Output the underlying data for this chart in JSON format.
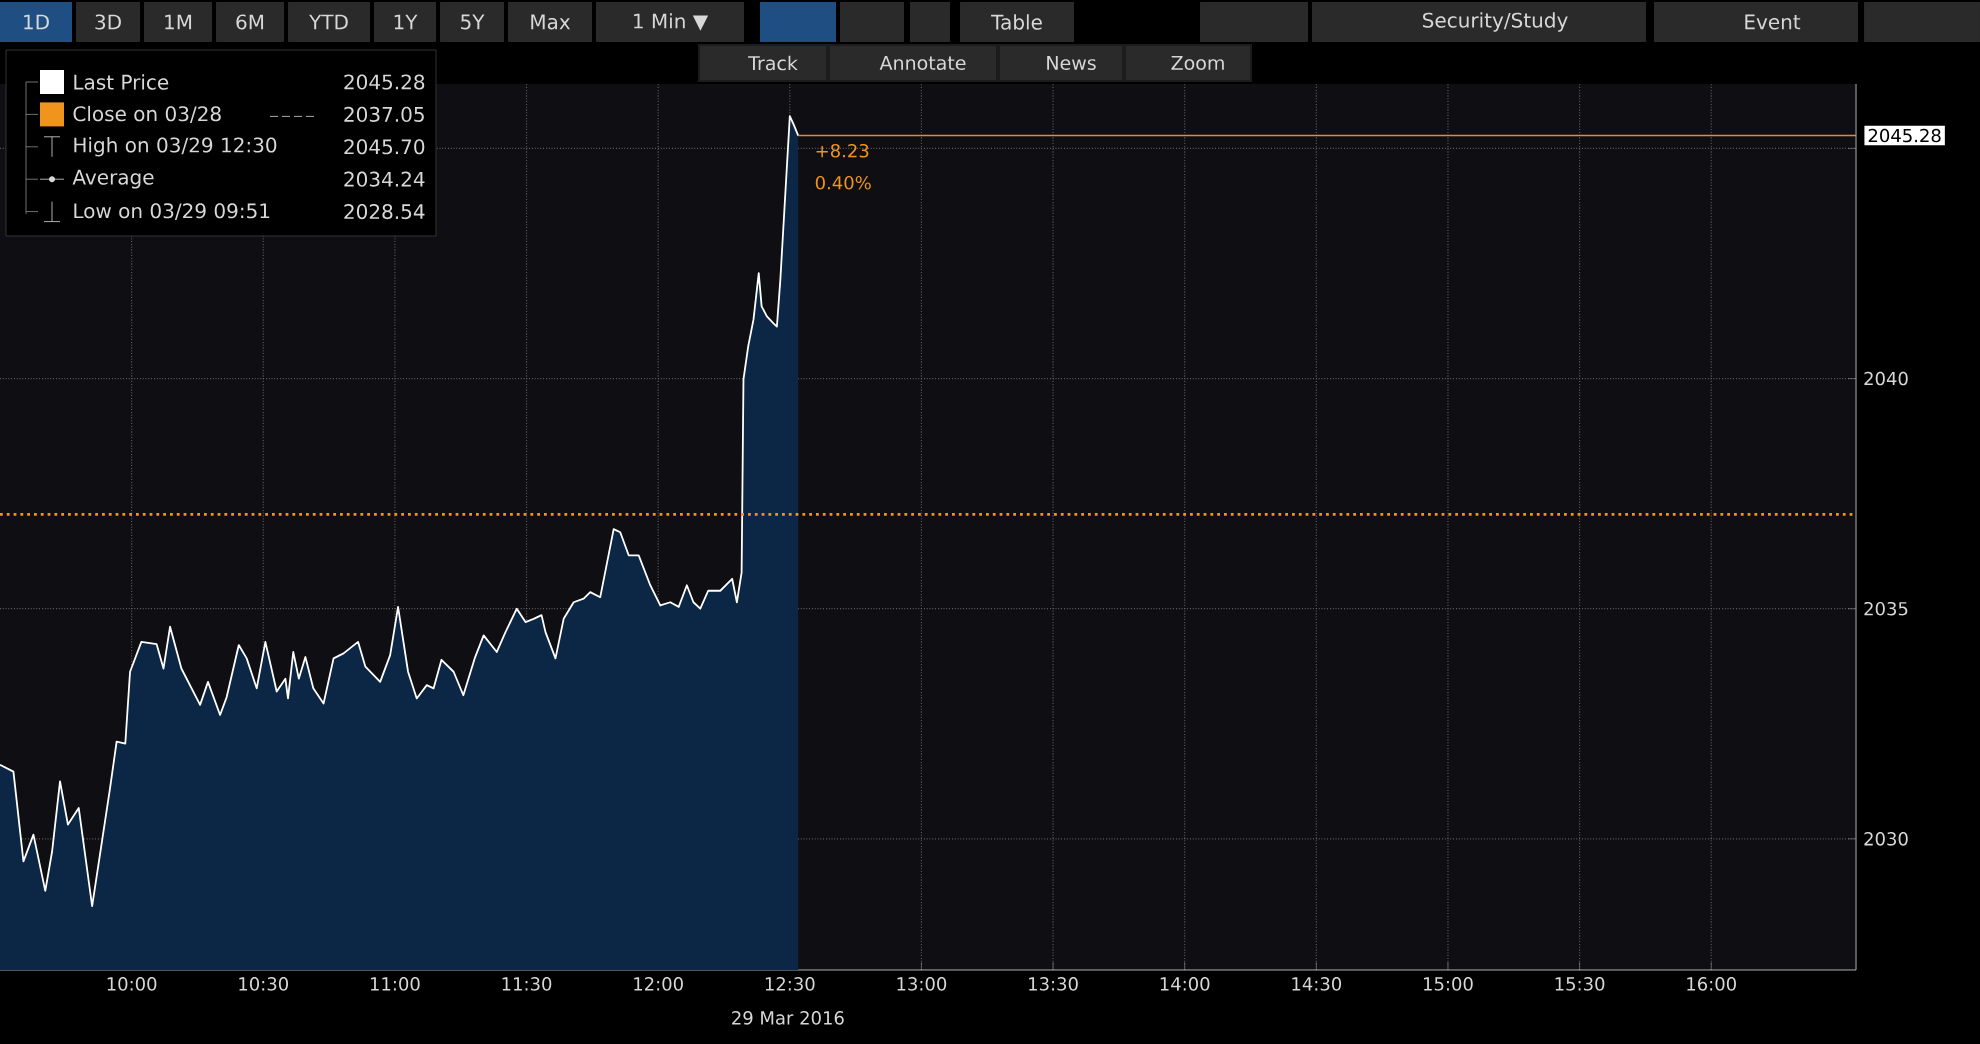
{
  "chart_data": {
    "type": "area",
    "xlabel": "29 Mar 2016",
    "x": [
      9.5,
      9.551,
      9.589,
      9.627,
      9.672,
      9.698,
      9.728,
      9.758,
      9.799,
      9.85,
      9.918,
      9.943,
      9.976,
      9.994,
      10.037,
      10.095,
      10.121,
      10.146,
      10.189,
      10.26,
      10.29,
      10.336,
      10.361,
      10.407,
      10.437,
      10.475,
      10.508,
      10.551,
      10.584,
      10.594,
      10.614,
      10.635,
      10.66,
      10.69,
      10.729,
      10.767,
      10.805,
      10.86,
      10.888,
      10.944,
      10.982,
      11.012,
      11.05,
      11.083,
      11.121,
      11.147,
      11.177,
      11.223,
      11.26,
      11.303,
      11.337,
      11.387,
      11.42,
      11.463,
      11.496,
      11.527,
      11.557,
      11.572,
      11.61,
      11.641,
      11.679,
      11.717,
      11.742,
      11.78,
      11.831,
      11.856,
      11.888,
      11.926,
      11.97,
      12.008,
      12.046,
      12.078,
      12.109,
      12.134,
      12.16,
      12.19,
      12.236,
      12.281,
      12.299,
      12.317,
      12.324,
      12.342,
      12.362,
      12.382,
      12.393,
      12.413,
      12.438,
      12.451,
      12.464,
      12.5,
      12.514,
      12.532
    ],
    "series": [
      {
        "name": "Last Price",
        "color": "#0c2745",
        "values": [
          2031.61,
          2031.46,
          2029.51,
          2030.09,
          2028.87,
          2029.73,
          2031.25,
          2030.31,
          2030.67,
          2028.54,
          2031.1,
          2032.11,
          2032.07,
          2033.63,
          2034.28,
          2034.23,
          2033.7,
          2034.61,
          2033.7,
          2032.91,
          2033.41,
          2032.69,
          2033.08,
          2034.21,
          2033.92,
          2033.27,
          2034.28,
          2033.2,
          2033.48,
          2033.05,
          2034.06,
          2033.48,
          2033.95,
          2033.27,
          2032.94,
          2033.92,
          2034.03,
          2034.28,
          2033.74,
          2033.41,
          2033.99,
          2035.04,
          2033.63,
          2033.05,
          2033.34,
          2033.27,
          2033.89,
          2033.63,
          2033.12,
          2033.92,
          2034.42,
          2034.06,
          2034.49,
          2035.0,
          2034.71,
          2034.78,
          2034.86,
          2034.49,
          2033.92,
          2034.78,
          2035.14,
          2035.22,
          2035.36,
          2035.25,
          2036.73,
          2036.66,
          2036.16,
          2036.16,
          2035.51,
          2035.07,
          2035.14,
          2035.04,
          2035.51,
          2035.14,
          2035.0,
          2035.39,
          2035.39,
          2035.65,
          2035.14,
          2035.79,
          2039.98,
          2040.7,
          2041.28,
          2042.29,
          2041.57,
          2041.35,
          2041.2,
          2041.13,
          2042.14,
          2045.7,
          2045.53,
          2045.28
        ]
      }
    ],
    "xlim": [
      9.5,
      16.55
    ],
    "ylim": [
      2027.15,
      2046.4
    ],
    "xticks": [
      {
        "value": 10,
        "label": "10:00"
      },
      {
        "value": 10.5,
        "label": "10:30"
      },
      {
        "value": 11,
        "label": "11:00"
      },
      {
        "value": 11.5,
        "label": "11:30"
      },
      {
        "value": 12,
        "label": "12:00"
      },
      {
        "value": 12.5,
        "label": "12:30"
      },
      {
        "value": 13,
        "label": "13:00"
      },
      {
        "value": 13.5,
        "label": "13:30"
      },
      {
        "value": 14,
        "label": "14:00"
      },
      {
        "value": 14.5,
        "label": "14:30"
      },
      {
        "value": 15,
        "label": "15:00"
      },
      {
        "value": 15.5,
        "label": "15:30"
      },
      {
        "value": 16,
        "label": "16:00"
      }
    ],
    "yticks": [
      2030,
      2035,
      2040,
      {
        "value": 2045,
        "label": null
      }
    ],
    "ref_lines": [
      {
        "axis": "y",
        "value": 2037.05,
        "label": "Close on 03/28",
        "color": "#f0941e",
        "line_style": "dotted"
      },
      {
        "axis": "y",
        "value": 2045.28,
        "label": "2045.28",
        "color": "#e8863a",
        "line_style": "solid"
      }
    ],
    "annotations": [
      "+8.23",
      "0.40%",
      "2045.28",
      "2037.05",
      "High on 03/29 12:30",
      "2045.70",
      "Average",
      "2034.24",
      "Low on 03/29 09:51",
      "2028.54",
      "1D",
      "3D",
      "1M",
      "6M",
      "YTD",
      "1Y",
      "5Y",
      "Max",
      "1 Min ▼",
      "Table",
      "Security/Study",
      "Event",
      "Track",
      "Annotate",
      "News",
      "Zoom"
    ],
    "grid": true,
    "legend": "top left"
  }
}
